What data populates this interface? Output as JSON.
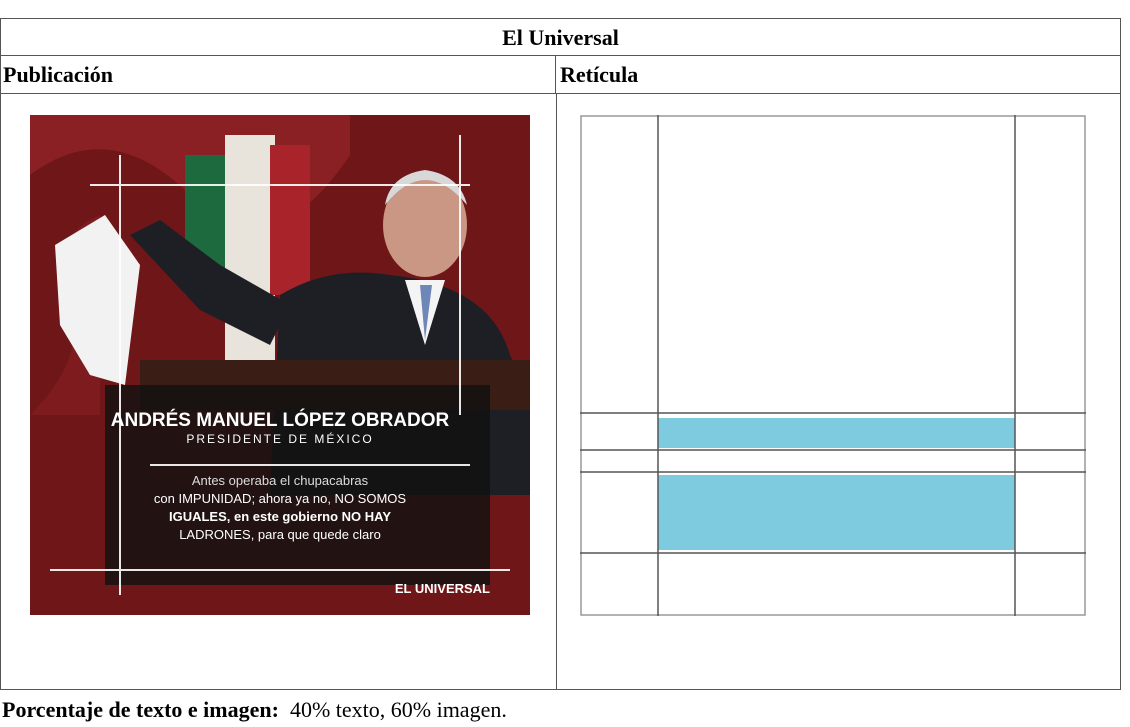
{
  "header": {
    "title": "El Universal"
  },
  "columns": [
    "Publicación",
    "Retícula"
  ],
  "publication": {
    "name": "ANDRÉS MANUEL LÓPEZ OBRADOR",
    "role": "PRESIDENTE DE MÉXICO",
    "quote_lines": [
      "Antes operaba el chupacabras",
      "con IMPUNIDAD; ahora ya no, NO SOMOS",
      "IGUALES, en este gobierno NO HAY",
      "LADRONES, para que quede claro"
    ],
    "brand": "EL UNIVERSAL"
  },
  "footer": {
    "label": "Porcentaje de texto e imagen:",
    "text": "40% texto, 60% imagen."
  }
}
